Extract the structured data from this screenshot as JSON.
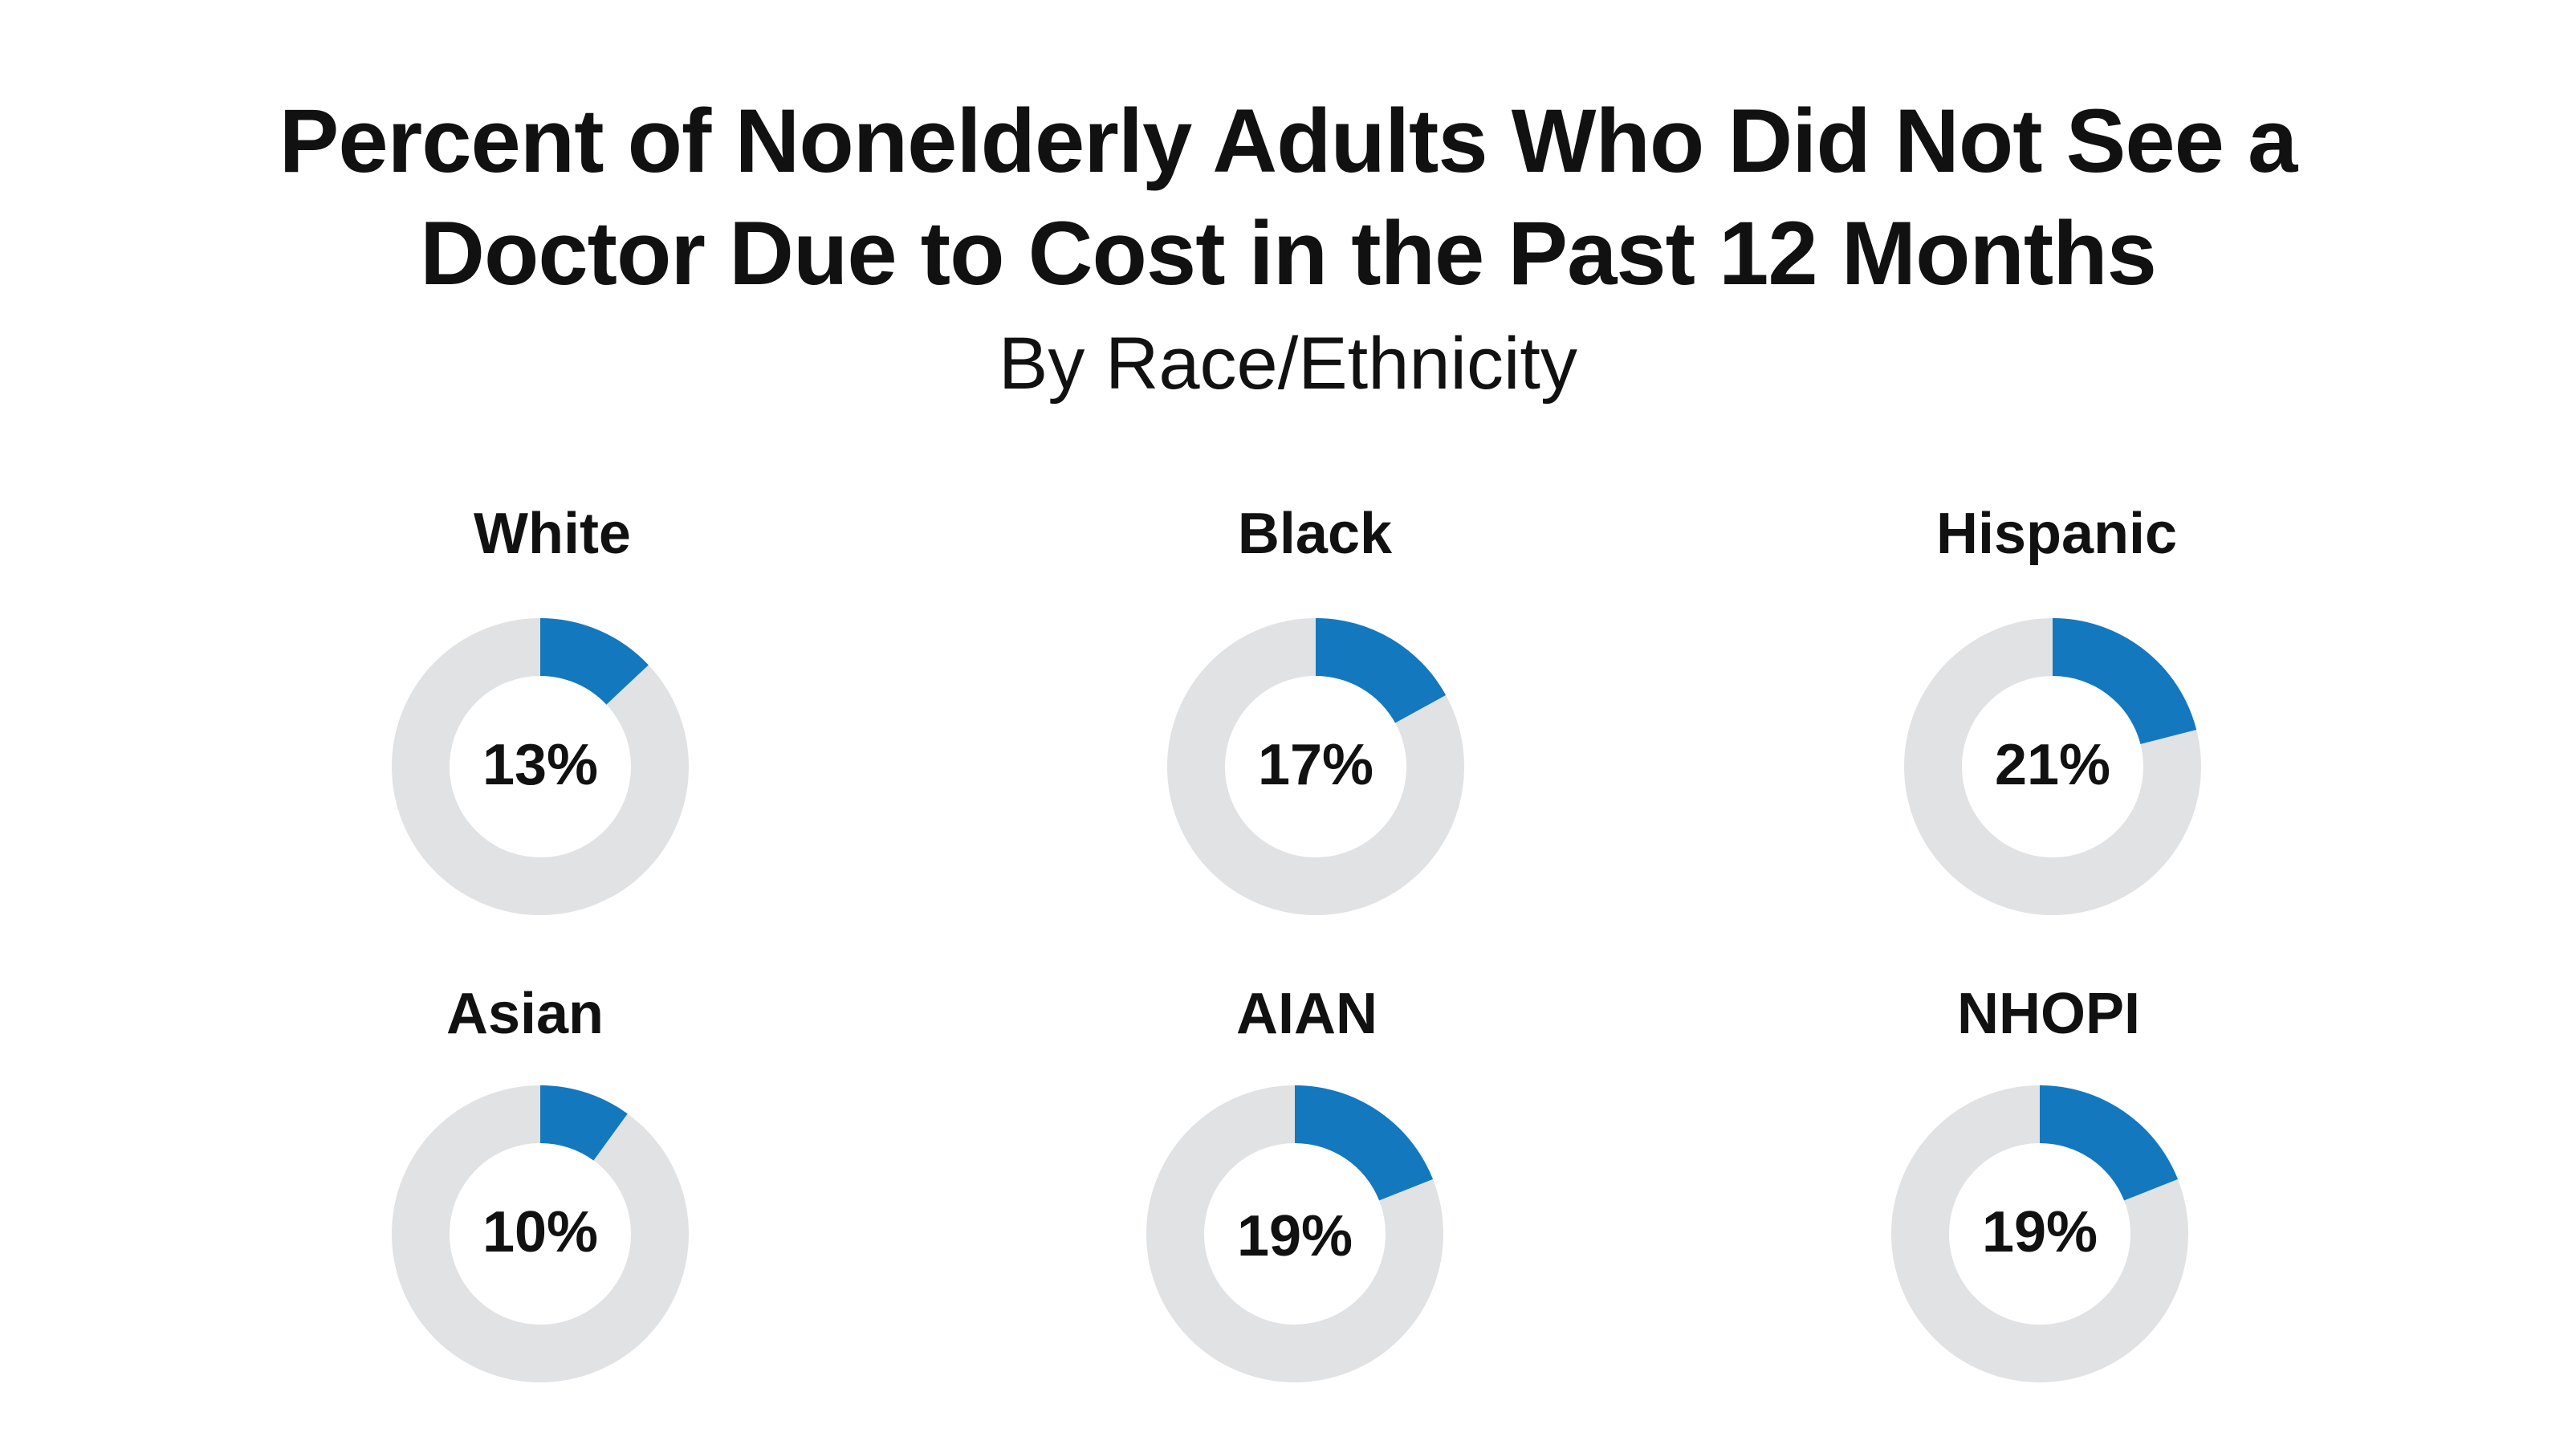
{
  "header": {
    "title_line1": "Percent of Nonelderly Adults Who Did Not See a",
    "title_line2": "Doctor Due to Cost in the Past 12 Months",
    "subtitle": "By Race/Ethnicity"
  },
  "colors": {
    "accent": "#1478be",
    "track": "#e1e2e4",
    "text": "#111111"
  },
  "chart_data": {
    "type": "pie",
    "title": "Percent of Nonelderly Adults Who Did Not See a Doctor Due to Cost in the Past 12 Months",
    "subtitle": "By Race/Ethnicity",
    "style": "donut",
    "categories": [
      "White",
      "Black",
      "Hispanic",
      "Asian",
      "AIAN",
      "NHOPI"
    ],
    "values": [
      13,
      17,
      21,
      10,
      19,
      19
    ],
    "value_labels": [
      "13%",
      "17%",
      "21%",
      "10%",
      "19%",
      "19%"
    ],
    "units": "percent"
  }
}
